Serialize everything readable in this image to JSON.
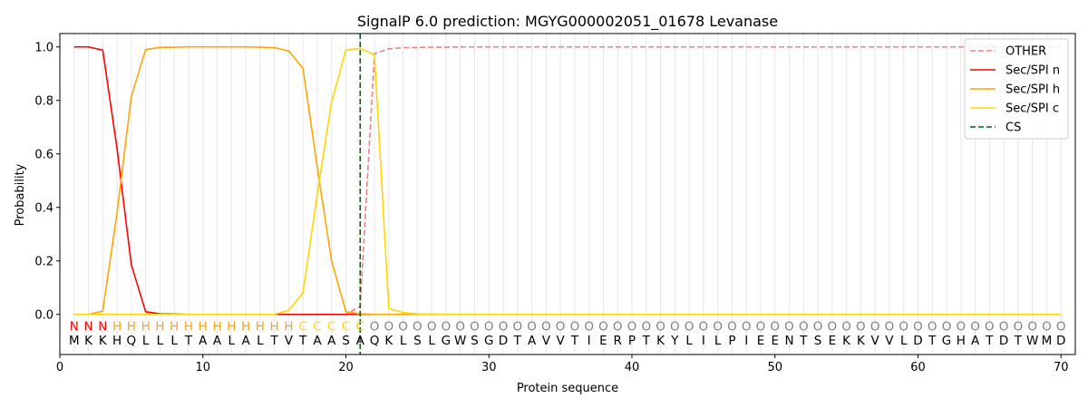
{
  "chart_data": {
    "type": "line",
    "title": "SignalP 6.0 prediction: MGYG000002051_01678 Levanase",
    "xlabel": "Protein sequence",
    "ylabel": "Probability",
    "xlim": [
      0,
      71
    ],
    "ylim": [
      -0.15,
      1.05
    ],
    "x_ticks": [
      0,
      10,
      20,
      30,
      40,
      50,
      60,
      70
    ],
    "y_ticks": [
      0.0,
      0.2,
      0.4,
      0.6,
      0.8,
      1.0
    ],
    "x_tick_labels": [
      "0",
      "10",
      "20",
      "30",
      "40",
      "50",
      "60",
      "70"
    ],
    "y_tick_labels": [
      "0.0",
      "0.2",
      "0.4",
      "0.6",
      "0.8",
      "1.0"
    ],
    "grid": "vertical lines at each residue",
    "legend_position": "top-right",
    "sequence": [
      "M",
      "K",
      "K",
      "H",
      "Q",
      "L",
      "L",
      "L",
      "T",
      "A",
      "A",
      "L",
      "A",
      "L",
      "T",
      "V",
      "T",
      "A",
      "A",
      "S",
      "A",
      "Q",
      "K",
      "L",
      "S",
      "L",
      "G",
      "W",
      "S",
      "G",
      "D",
      "T",
      "A",
      "V",
      "V",
      "T",
      "I",
      "E",
      "R",
      "P",
      "T",
      "K",
      "Y",
      "L",
      "I",
      "L",
      "P",
      "I",
      "E",
      "E",
      "N",
      "T",
      "S",
      "E",
      "K",
      "K",
      "V",
      "V",
      "L",
      "D",
      "T",
      "G",
      "H",
      "A",
      "T",
      "D",
      "T",
      "W",
      "M",
      "D"
    ],
    "region_labels": [
      "N",
      "N",
      "N",
      "H",
      "H",
      "H",
      "H",
      "H",
      "H",
      "H",
      "H",
      "H",
      "H",
      "H",
      "H",
      "H",
      "C",
      "C",
      "C",
      "C",
      "C",
      "O",
      "O",
      "O",
      "O",
      "O",
      "O",
      "O",
      "O",
      "O",
      "O",
      "O",
      "O",
      "O",
      "O",
      "O",
      "O",
      "O",
      "O",
      "O",
      "O",
      "O",
      "O",
      "O",
      "O",
      "O",
      "O",
      "O",
      "O",
      "O",
      "O",
      "O",
      "O",
      "O",
      "O",
      "O",
      "O",
      "O",
      "O",
      "O",
      "O",
      "O",
      "O",
      "O",
      "O",
      "O",
      "O",
      "O",
      "O",
      "O"
    ],
    "region_colors": {
      "N": "#ff0000",
      "H": "#ffa500",
      "C": "#ffd700",
      "O": "#808080"
    },
    "cleavage_site": 21,
    "series": [
      {
        "name": "OTHER",
        "color": "#f08080",
        "style": "dashed",
        "values": [
          0,
          0,
          0,
          0,
          0,
          0,
          0,
          0,
          0,
          0,
          0,
          0,
          0,
          0,
          0,
          0,
          0,
          0,
          0,
          0,
          0.03,
          0.975,
          0.993,
          0.997,
          0.998,
          0.999,
          0.999,
          1,
          1,
          1,
          1,
          1,
          1,
          1,
          1,
          1,
          1,
          1,
          1,
          1,
          1,
          1,
          1,
          1,
          1,
          1,
          1,
          1,
          1,
          1,
          1,
          1,
          1,
          1,
          1,
          1,
          1,
          1,
          1,
          1,
          1,
          1,
          1,
          1,
          1,
          1,
          1,
          1,
          1,
          1
        ]
      },
      {
        "name": "Sec/SPI n",
        "color": "#ff0000",
        "style": "solid",
        "values": [
          1.0,
          1.0,
          0.988,
          0.62,
          0.185,
          0.01,
          0.002,
          0.001,
          0,
          0,
          0,
          0,
          0,
          0,
          0,
          0,
          0,
          0,
          0,
          0,
          0,
          0,
          0,
          0,
          0,
          0,
          0,
          0,
          0,
          0,
          0,
          0,
          0,
          0,
          0,
          0,
          0,
          0,
          0,
          0,
          0,
          0,
          0,
          0,
          0,
          0,
          0,
          0,
          0,
          0,
          0,
          0,
          0,
          0,
          0,
          0,
          0,
          0,
          0,
          0,
          0,
          0,
          0,
          0,
          0,
          0,
          0,
          0,
          0,
          0
        ]
      },
      {
        "name": "Sec/SPI h",
        "color": "#ffa500",
        "style": "solid",
        "values": [
          0,
          0,
          0.012,
          0.38,
          0.815,
          0.99,
          0.998,
          0.999,
          1.0,
          1.0,
          1.0,
          1.0,
          1.0,
          0.999,
          0.997,
          0.985,
          0.92,
          0.55,
          0.2,
          0.01,
          0.002,
          0,
          0,
          0,
          0,
          0,
          0,
          0,
          0,
          0,
          0,
          0,
          0,
          0,
          0,
          0,
          0,
          0,
          0,
          0,
          0,
          0,
          0,
          0,
          0,
          0,
          0,
          0,
          0,
          0,
          0,
          0,
          0,
          0,
          0,
          0,
          0,
          0,
          0,
          0,
          0,
          0,
          0,
          0,
          0,
          0,
          0,
          0,
          0,
          0
        ]
      },
      {
        "name": "Sec/SPI c",
        "color": "#ffd700",
        "style": "solid",
        "values": [
          0,
          0,
          0,
          0,
          0,
          0,
          0,
          0,
          0,
          0,
          0,
          0,
          0,
          0,
          0,
          0.015,
          0.08,
          0.45,
          0.795,
          0.988,
          0.995,
          0.97,
          0.022,
          0.007,
          0.002,
          0.001,
          0,
          0,
          0,
          0,
          0,
          0,
          0,
          0,
          0,
          0,
          0,
          0,
          0,
          0,
          0,
          0,
          0,
          0,
          0,
          0,
          0,
          0,
          0,
          0,
          0,
          0,
          0,
          0,
          0,
          0,
          0,
          0,
          0,
          0,
          0,
          0,
          0,
          0,
          0,
          0,
          0,
          0,
          0,
          0
        ]
      }
    ],
    "legend": [
      {
        "name": "OTHER",
        "color": "#f08080",
        "style": "dashed"
      },
      {
        "name": "Sec/SPI n",
        "color": "#ff0000",
        "style": "solid"
      },
      {
        "name": "Sec/SPI h",
        "color": "#ffa500",
        "style": "solid"
      },
      {
        "name": "Sec/SPI c",
        "color": "#ffd700",
        "style": "solid"
      },
      {
        "name": "CS",
        "color": "#006400",
        "style": "dashed"
      }
    ]
  }
}
